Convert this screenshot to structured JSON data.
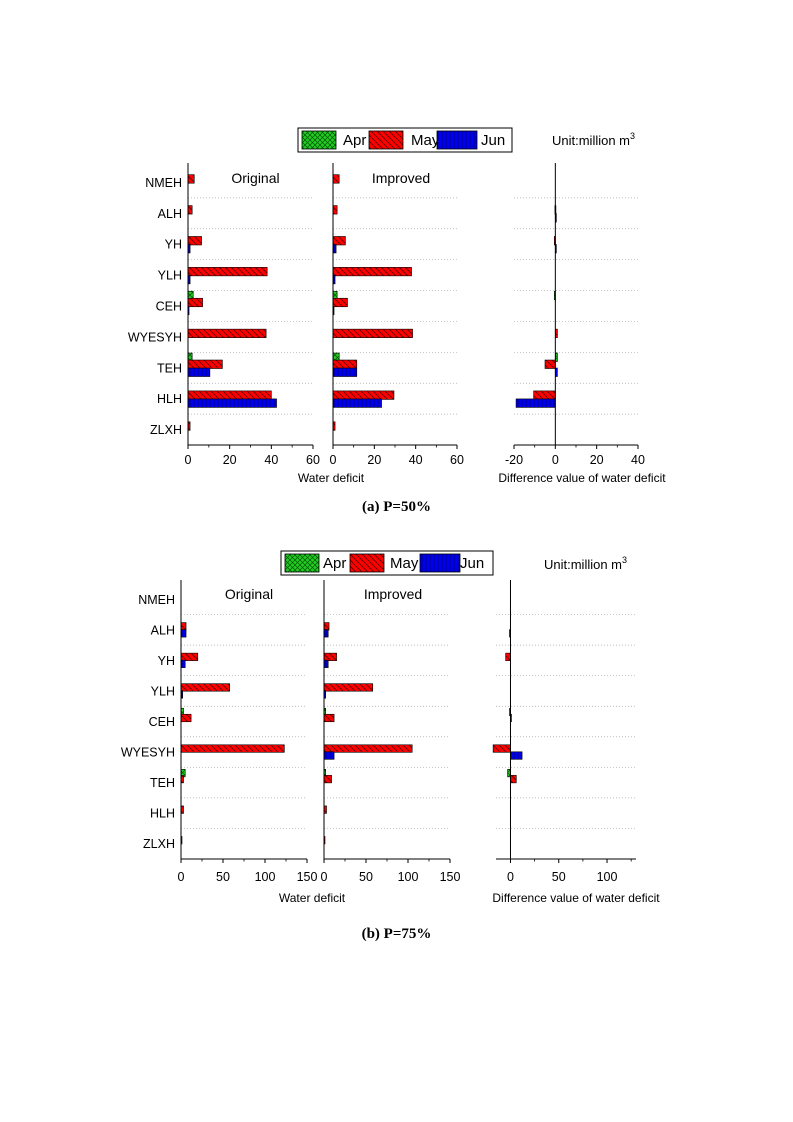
{
  "unit_label": "Unit:million m",
  "unit_superscript": "3",
  "legend": [
    {
      "name": "Apr",
      "color": "#22cc22"
    },
    {
      "name": "May",
      "color": "#ff0000"
    },
    {
      "name": "Jun",
      "color": "#0000ee"
    }
  ],
  "colors": {
    "Apr": "#22cc22",
    "May": "#ff0000",
    "Jun": "#0000ee"
  },
  "chart_data": [
    {
      "type": "bar",
      "caption": "(a) P=50%",
      "categories": [
        "NMEH",
        "ALH",
        "YH",
        "YLH",
        "CEH",
        "WYESYH",
        "TEH",
        "HLH",
        "ZLXH"
      ],
      "panels": [
        {
          "title": "Original",
          "xlabel": "Water deficit",
          "xlim": [
            0,
            60
          ],
          "xticks": [
            0,
            20,
            40,
            60
          ],
          "series": [
            {
              "name": "Apr",
              "values": [
                0,
                0,
                0,
                0,
                2.5,
                0,
                2,
                0,
                0
              ]
            },
            {
              "name": "May",
              "values": [
                3,
                2,
                6.5,
                38,
                7,
                37.5,
                16.5,
                40,
                1
              ]
            },
            {
              "name": "Jun",
              "values": [
                0,
                0,
                1,
                1,
                0.5,
                0,
                10.5,
                42.5,
                0
              ]
            }
          ]
        },
        {
          "title": "Improved",
          "xlabel": "",
          "xlim": [
            0,
            60
          ],
          "xticks": [
            0,
            20,
            40,
            60
          ],
          "series": [
            {
              "name": "Apr",
              "values": [
                0,
                0,
                0,
                0,
                2,
                0,
                3,
                0,
                0
              ]
            },
            {
              "name": "May",
              "values": [
                3,
                2,
                6,
                38,
                7,
                38.5,
                11.5,
                29.5,
                1
              ]
            },
            {
              "name": "Jun",
              "values": [
                0,
                0,
                1.5,
                1,
                0.5,
                0,
                11.5,
                23.5,
                0
              ]
            }
          ]
        },
        {
          "title": "",
          "xlabel": "Difference value of water deficit",
          "xlim": [
            -20,
            40
          ],
          "xticks": [
            -20,
            0,
            20,
            40
          ],
          "series": [
            {
              "name": "Apr",
              "values": [
                0,
                0,
                0,
                0,
                -0.5,
                0,
                1,
                0,
                0
              ]
            },
            {
              "name": "May",
              "values": [
                0,
                -0.2,
                -0.5,
                0,
                0,
                1,
                -5,
                -10.5,
                0
              ]
            },
            {
              "name": "Jun",
              "values": [
                0,
                0.5,
                0.5,
                0,
                0,
                0,
                1,
                -19,
                0
              ]
            }
          ]
        }
      ]
    },
    {
      "type": "bar",
      "caption": "(b) P=75%",
      "categories": [
        "NMEH",
        "ALH",
        "YH",
        "YLH",
        "CEH",
        "WYESYH",
        "TEH",
        "HLH",
        "ZLXH"
      ],
      "panels": [
        {
          "title": "Original",
          "xlabel": "Water deficit",
          "xlim": [
            0,
            150
          ],
          "xticks": [
            0,
            50,
            100,
            150
          ],
          "series": [
            {
              "name": "Apr",
              "values": [
                0,
                0,
                0,
                0,
                3,
                0,
                5,
                0,
                0
              ]
            },
            {
              "name": "May",
              "values": [
                0,
                6,
                20,
                58,
                12,
                123,
                3,
                3,
                1
              ]
            },
            {
              "name": "Jun",
              "values": [
                0,
                6,
                5,
                2,
                0,
                0,
                0,
                0,
                0
              ]
            }
          ]
        },
        {
          "title": "Improved",
          "xlabel": "",
          "xlim": [
            0,
            150
          ],
          "xticks": [
            0,
            50,
            100,
            150
          ],
          "series": [
            {
              "name": "Apr",
              "values": [
                0,
                0,
                0,
                0,
                2,
                0,
                2,
                0,
                0
              ]
            },
            {
              "name": "May",
              "values": [
                0,
                6,
                15,
                58,
                12,
                105,
                9,
                3,
                1
              ]
            },
            {
              "name": "Jun",
              "values": [
                0,
                5,
                5,
                2,
                0,
                12,
                0,
                0,
                0
              ]
            }
          ]
        },
        {
          "title": "",
          "xlabel": "Difference value of water deficit",
          "xlim": [
            -15,
            130
          ],
          "xticks": [
            0,
            50,
            100
          ],
          "series": [
            {
              "name": "Apr",
              "values": [
                0,
                0,
                0,
                0,
                -1,
                0,
                -3,
                0,
                0
              ]
            },
            {
              "name": "May",
              "values": [
                0,
                0,
                -5,
                0,
                1,
                -18,
                6,
                0,
                0
              ]
            },
            {
              "name": "Jun",
              "values": [
                0,
                -1,
                0,
                0,
                0,
                12,
                0,
                0,
                0
              ]
            }
          ]
        }
      ]
    }
  ]
}
